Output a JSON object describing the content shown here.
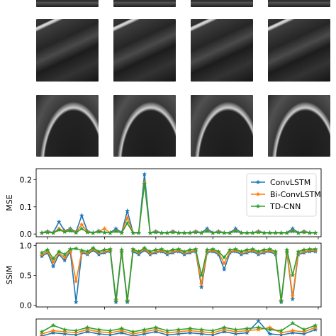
{
  "image_grid": {
    "rows": 3,
    "cols": 4,
    "tiles": [
      {
        "row": 0,
        "scene": "urban-edge"
      },
      {
        "row": 1,
        "scene": "diagonal-road"
      },
      {
        "row": 2,
        "scene": "lake-shore"
      }
    ]
  },
  "chart_data": [
    {
      "type": "line",
      "ylabel": "MSE",
      "ylim": [
        -0.01,
        0.24
      ],
      "yticks": [
        "0.0",
        "0.1",
        "0.2"
      ],
      "xlim": [
        0,
        100
      ],
      "grid": false,
      "legend": {
        "placement": "top-right",
        "entries": [
          "ConvLSTM",
          "Bi-ConvLSTM",
          "TD-CNN"
        ]
      },
      "series": [
        {
          "name": "ConvLSTM",
          "color": "#1f77b4",
          "marker": "star",
          "x": [
            2,
            4,
            6,
            8,
            10,
            12,
            14,
            16,
            18,
            20,
            22,
            24,
            26,
            28,
            30,
            32,
            34,
            36,
            38,
            40,
            42,
            44,
            46,
            48,
            50,
            52,
            54,
            56,
            58,
            60,
            62,
            64,
            66,
            68,
            70,
            72,
            74,
            76,
            78,
            80,
            82,
            84,
            86,
            88,
            90,
            92,
            94,
            96,
            98
          ],
          "values": [
            0.005,
            0.01,
            0.005,
            0.045,
            0.012,
            0.02,
            0.008,
            0.068,
            0.01,
            0.005,
            0.012,
            0.005,
            0.005,
            0.02,
            0.005,
            0.085,
            0.005,
            0.005,
            0.22,
            0.005,
            0.01,
            0.005,
            0.005,
            0.01,
            0.005,
            0.005,
            0.005,
            0.01,
            0.005,
            0.02,
            0.005,
            0.01,
            0.005,
            0.005,
            0.02,
            0.005,
            0.005,
            0.005,
            0.01,
            0.005,
            0.005,
            0.005,
            0.005,
            0.005,
            0.02,
            0.005,
            0.01,
            0.005,
            0.005
          ]
        },
        {
          "name": "Bi-ConvLSTM",
          "color": "#ff7f0e",
          "marker": "star",
          "x": [
            2,
            4,
            6,
            8,
            10,
            12,
            14,
            16,
            18,
            20,
            22,
            24,
            26,
            28,
            30,
            32,
            34,
            36,
            38,
            40,
            42,
            44,
            46,
            48,
            50,
            52,
            54,
            56,
            58,
            60,
            62,
            64,
            66,
            68,
            70,
            72,
            74,
            76,
            78,
            80,
            82,
            84,
            86,
            88,
            90,
            92,
            94,
            96,
            98
          ],
          "values": [
            0.004,
            0.008,
            0.004,
            0.02,
            0.01,
            0.015,
            0.006,
            0.035,
            0.008,
            0.004,
            0.01,
            0.02,
            0.004,
            0.012,
            0.004,
            0.06,
            0.004,
            0.004,
            0.19,
            0.004,
            0.008,
            0.004,
            0.004,
            0.008,
            0.004,
            0.004,
            0.004,
            0.008,
            0.004,
            0.012,
            0.004,
            0.008,
            0.004,
            0.004,
            0.012,
            0.004,
            0.004,
            0.004,
            0.008,
            0.004,
            0.004,
            0.004,
            0.004,
            0.004,
            0.012,
            0.004,
            0.008,
            0.004,
            0.004
          ]
        },
        {
          "name": "TD-CNN",
          "color": "#2ca02c",
          "marker": "star",
          "x": [
            2,
            4,
            6,
            8,
            10,
            12,
            14,
            16,
            18,
            20,
            22,
            24,
            26,
            28,
            30,
            32,
            34,
            36,
            38,
            40,
            42,
            44,
            46,
            48,
            50,
            52,
            54,
            56,
            58,
            60,
            62,
            64,
            66,
            68,
            70,
            72,
            74,
            76,
            78,
            80,
            82,
            84,
            86,
            88,
            90,
            92,
            94,
            96,
            98
          ],
          "values": [
            0.004,
            0.006,
            0.004,
            0.015,
            0.008,
            0.012,
            0.005,
            0.02,
            0.006,
            0.004,
            0.008,
            0.006,
            0.004,
            0.01,
            0.004,
            0.04,
            0.004,
            0.004,
            0.185,
            0.004,
            0.006,
            0.004,
            0.004,
            0.006,
            0.004,
            0.004,
            0.004,
            0.006,
            0.004,
            0.01,
            0.004,
            0.006,
            0.004,
            0.004,
            0.01,
            0.004,
            0.004,
            0.004,
            0.006,
            0.004,
            0.004,
            0.004,
            0.004,
            0.004,
            0.01,
            0.004,
            0.006,
            0.004,
            0.004
          ]
        }
      ]
    },
    {
      "type": "line",
      "ylabel": "SSIM",
      "ylim": [
        -0.03,
        1.04
      ],
      "yticks": [
        "0.0",
        "0.5",
        "1.0"
      ],
      "xlim": [
        0,
        100
      ],
      "grid": false,
      "series": [
        {
          "name": "ConvLSTM",
          "color": "#1f77b4",
          "marker": "star",
          "x": [
            2,
            4,
            6,
            8,
            10,
            12,
            14,
            16,
            18,
            20,
            22,
            24,
            26,
            28,
            30,
            32,
            34,
            36,
            38,
            40,
            42,
            44,
            46,
            48,
            50,
            52,
            54,
            56,
            58,
            60,
            62,
            64,
            66,
            68,
            70,
            72,
            74,
            76,
            78,
            80,
            82,
            84,
            86,
            88,
            90,
            92,
            94,
            96,
            98
          ],
          "values": [
            0.82,
            0.88,
            0.65,
            0.85,
            0.75,
            0.9,
            0.05,
            0.88,
            0.85,
            0.92,
            0.85,
            0.88,
            0.9,
            0.05,
            0.88,
            0.05,
            0.9,
            0.85,
            0.92,
            0.85,
            0.88,
            0.9,
            0.85,
            0.88,
            0.9,
            0.85,
            0.88,
            0.9,
            0.3,
            0.88,
            0.9,
            0.85,
            0.6,
            0.88,
            0.9,
            0.85,
            0.88,
            0.9,
            0.85,
            0.88,
            0.9,
            0.85,
            0.05,
            0.88,
            0.1,
            0.85,
            0.88,
            0.9,
            0.9
          ]
        },
        {
          "name": "Bi-ConvLSTM",
          "color": "#ff7f0e",
          "marker": "star",
          "x": [
            2,
            4,
            6,
            8,
            10,
            12,
            14,
            16,
            18,
            20,
            22,
            24,
            26,
            28,
            30,
            32,
            34,
            36,
            38,
            40,
            42,
            44,
            46,
            48,
            50,
            52,
            54,
            56,
            58,
            60,
            62,
            64,
            66,
            68,
            70,
            72,
            74,
            76,
            78,
            80,
            82,
            84,
            86,
            88,
            90,
            92,
            94,
            96,
            98
          ],
          "values": [
            0.85,
            0.9,
            0.72,
            0.87,
            0.8,
            0.92,
            0.4,
            0.9,
            0.87,
            0.94,
            0.88,
            0.9,
            0.92,
            0.1,
            0.9,
            0.08,
            0.92,
            0.88,
            0.94,
            0.87,
            0.9,
            0.92,
            0.88,
            0.9,
            0.92,
            0.88,
            0.9,
            0.92,
            0.35,
            0.9,
            0.92,
            0.88,
            0.7,
            0.9,
            0.92,
            0.88,
            0.9,
            0.92,
            0.88,
            0.9,
            0.92,
            0.88,
            0.08,
            0.9,
            0.15,
            0.88,
            0.9,
            0.92,
            0.92
          ]
        },
        {
          "name": "TD-CNN",
          "color": "#2ca02c",
          "marker": "star",
          "x": [
            2,
            4,
            6,
            8,
            10,
            12,
            14,
            16,
            18,
            20,
            22,
            24,
            26,
            28,
            30,
            32,
            34,
            36,
            38,
            40,
            42,
            44,
            46,
            48,
            50,
            52,
            54,
            56,
            58,
            60,
            62,
            64,
            66,
            68,
            70,
            72,
            74,
            76,
            78,
            80,
            82,
            84,
            86,
            88,
            90,
            92,
            94,
            96,
            98
          ],
          "values": [
            0.88,
            0.93,
            0.78,
            0.9,
            0.85,
            0.94,
            0.95,
            0.92,
            0.9,
            0.96,
            0.9,
            0.93,
            0.94,
            0.08,
            0.93,
            0.07,
            0.94,
            0.9,
            0.96,
            0.9,
            0.93,
            0.94,
            0.9,
            0.93,
            0.94,
            0.9,
            0.93,
            0.94,
            0.5,
            0.93,
            0.94,
            0.9,
            0.8,
            0.93,
            0.94,
            0.9,
            0.93,
            0.94,
            0.9,
            0.93,
            0.94,
            0.9,
            0.07,
            0.93,
            0.5,
            0.9,
            0.93,
            0.94,
            0.94
          ]
        }
      ]
    },
    {
      "type": "line",
      "ylabel": "",
      "ylim": [
        0,
        1
      ],
      "xlim": [
        0,
        100
      ],
      "grid": false,
      "series": [
        {
          "name": "ConvLSTM",
          "color": "#1f77b4",
          "marker": "star",
          "x": [
            2,
            6,
            10,
            14,
            18,
            22,
            26,
            30,
            34,
            38,
            42,
            46,
            50,
            54,
            58,
            62,
            66,
            70,
            74,
            78,
            82,
            86,
            90,
            94,
            98
          ],
          "values": [
            0.2,
            0.35,
            0.3,
            0.25,
            0.4,
            0.3,
            0.25,
            0.35,
            0.2,
            0.3,
            0.4,
            0.25,
            0.3,
            0.35,
            0.3,
            0.25,
            0.4,
            0.3,
            0.35,
            0.9,
            0.3,
            0.25,
            0.35,
            0.3,
            0.5
          ]
        },
        {
          "name": "Bi-ConvLSTM",
          "color": "#ff7f0e",
          "marker": "star",
          "x": [
            2,
            6,
            10,
            14,
            18,
            22,
            26,
            30,
            34,
            38,
            42,
            46,
            50,
            54,
            58,
            62,
            66,
            70,
            74,
            78,
            82,
            86,
            90,
            94,
            98
          ],
          "values": [
            0.3,
            0.45,
            0.4,
            0.35,
            0.5,
            0.4,
            0.35,
            0.45,
            0.3,
            0.4,
            0.5,
            0.35,
            0.4,
            0.45,
            0.4,
            0.35,
            0.5,
            0.4,
            0.45,
            0.5,
            0.6,
            0.35,
            0.45,
            0.4,
            0.6
          ]
        },
        {
          "name": "TD-CNN",
          "color": "#2ca02c",
          "marker": "star",
          "x": [
            2,
            6,
            10,
            14,
            18,
            22,
            26,
            30,
            34,
            38,
            42,
            46,
            50,
            54,
            58,
            62,
            66,
            70,
            74,
            78,
            82,
            86,
            90,
            94,
            98
          ],
          "values": [
            0.4,
            0.7,
            0.5,
            0.45,
            0.6,
            0.5,
            0.45,
            0.55,
            0.4,
            0.5,
            0.6,
            0.45,
            0.5,
            0.55,
            0.5,
            0.45,
            0.6,
            0.5,
            0.55,
            0.6,
            0.5,
            0.45,
            0.8,
            0.5,
            0.7
          ]
        }
      ]
    }
  ]
}
